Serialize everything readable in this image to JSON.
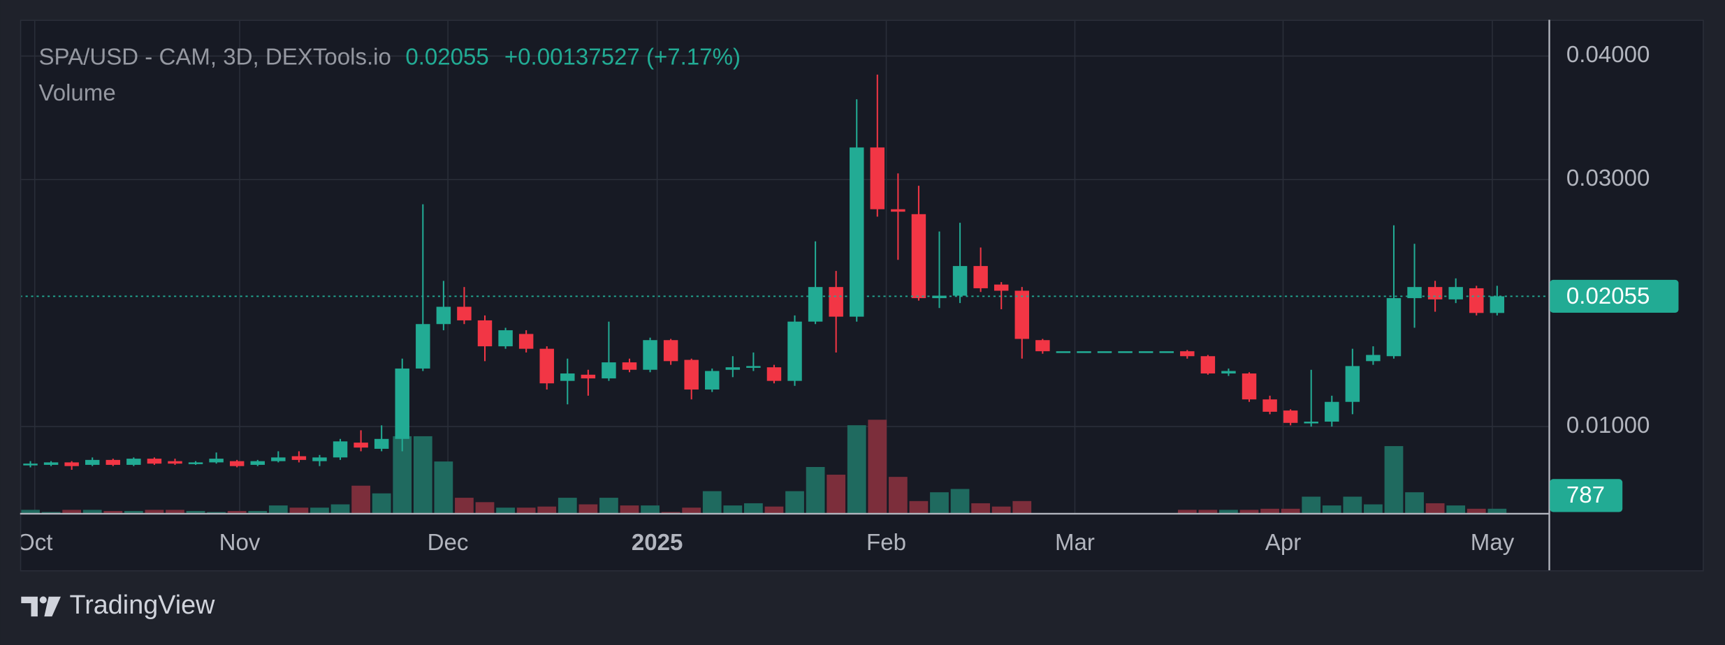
{
  "chart_data": {
    "type": "candlestick",
    "symbol": "SPA/USD - CAM, 3D, DEXTools.io",
    "change": "+0.00137527 (+7.17%)",
    "volume_title": "Volume",
    "brand": "TradingView",
    "up_color": "#22ab94",
    "down_color": "#f23645",
    "volume_up_color": "#1f6a5f",
    "volume_down_color": "#7c2e3b",
    "ylim": [
      0.00299,
      0.04294
    ],
    "yticks": [
      {
        "value": 0.01,
        "label": "0.01000"
      },
      {
        "value": 0.03,
        "label": "0.03000"
      },
      {
        "value": 0.04,
        "label": "0.04000"
      }
    ],
    "y2lim": [
      0,
      88000
    ],
    "xlim": [
      -0.5,
      73.5
    ],
    "xticks": [
      {
        "value": 0.21,
        "label": "Oct"
      },
      {
        "value": 10.13,
        "label": "Nov"
      },
      {
        "value": 20.21,
        "label": "Dec"
      },
      {
        "value": 30.34,
        "label": "2025"
      },
      {
        "value": 41.43,
        "label": "Feb"
      },
      {
        "value": 50.56,
        "label": "Mar"
      },
      {
        "value": 60.64,
        "label": "Apr"
      },
      {
        "value": 70.77,
        "label": "May"
      }
    ],
    "grid": true,
    "open": [
      0.0069,
      0.0069,
      0.0071,
      0.0069,
      0.0073,
      0.0069,
      0.0074,
      0.0072,
      0.007,
      0.0071,
      0.0072,
      0.0069,
      0.0072,
      0.0076,
      0.0072,
      0.0075,
      0.0087,
      0.0082,
      0.009,
      0.0147,
      0.0183,
      0.0197,
      0.0186,
      0.0165,
      0.0175,
      0.0163,
      0.0137,
      0.0142,
      0.0139,
      0.0152,
      0.0146,
      0.017,
      0.0154,
      0.013,
      0.0146,
      0.0148,
      0.0148,
      0.0137,
      0.0185,
      0.0213,
      0.0189,
      0.0326,
      0.0276,
      0.0272,
      0.0204,
      0.0206,
      0.023,
      0.0215,
      0.021,
      0.017,
      0.0161,
      0.0161,
      0.0161,
      0.0161,
      0.0161,
      0.0161,
      0.0161,
      0.0157,
      0.0143,
      0.0143,
      0.0122,
      0.0113,
      0.0103,
      0.0104,
      0.012,
      0.0153,
      0.0157,
      0.0204,
      0.0213,
      0.0203,
      0.0212,
      0.0192
    ],
    "high": [
      0.0072,
      0.0072,
      0.0072,
      0.0075,
      0.0074,
      0.0075,
      0.0075,
      0.0074,
      0.0072,
      0.0079,
      0.0073,
      0.0073,
      0.008,
      0.008,
      0.0077,
      0.009,
      0.0097,
      0.0101,
      0.0155,
      0.028,
      0.0218,
      0.0213,
      0.019,
      0.018,
      0.0178,
      0.0165,
      0.0155,
      0.0146,
      0.0185,
      0.0155,
      0.0172,
      0.0171,
      0.0155,
      0.0147,
      0.0157,
      0.016,
      0.015,
      0.019,
      0.025,
      0.0226,
      0.0365,
      0.0385,
      0.0305,
      0.0295,
      0.0258,
      0.0265,
      0.0245,
      0.0217,
      0.0213,
      0.0171,
      0.0161,
      0.0161,
      0.0161,
      0.0161,
      0.0161,
      0.0161,
      0.0162,
      0.0158,
      0.0147,
      0.0144,
      0.0125,
      0.0114,
      0.0146,
      0.0125,
      0.0163,
      0.0165,
      0.0263,
      0.0248,
      0.0218,
      0.022,
      0.0214,
      0.0214
    ],
    "low": [
      0.0067,
      0.0068,
      0.0065,
      0.0068,
      0.0068,
      0.0068,
      0.0069,
      0.0069,
      0.0069,
      0.007,
      0.0067,
      0.0068,
      0.0071,
      0.0071,
      0.0068,
      0.0073,
      0.008,
      0.008,
      0.008,
      0.0145,
      0.0178,
      0.0183,
      0.0153,
      0.0163,
      0.016,
      0.013,
      0.0118,
      0.0125,
      0.0137,
      0.0144,
      0.0144,
      0.015,
      0.0122,
      0.0128,
      0.014,
      0.0145,
      0.0135,
      0.0133,
      0.0183,
      0.016,
      0.0185,
      0.027,
      0.0235,
      0.0202,
      0.0196,
      0.02,
      0.0209,
      0.0195,
      0.0155,
      0.0159,
      0.0161,
      0.0161,
      0.0161,
      0.0161,
      0.0161,
      0.0161,
      0.0155,
      0.0142,
      0.0141,
      0.012,
      0.011,
      0.0101,
      0.01,
      0.01,
      0.011,
      0.015,
      0.0155,
      0.018,
      0.0193,
      0.02,
      0.019,
      0.019
    ],
    "close": [
      0.007,
      0.0071,
      0.0068,
      0.0073,
      0.0069,
      0.0074,
      0.007,
      0.007,
      0.0071,
      0.0074,
      0.0068,
      0.0072,
      0.0075,
      0.0073,
      0.0075,
      0.0088,
      0.0083,
      0.009,
      0.0147,
      0.0183,
      0.0197,
      0.0186,
      0.0165,
      0.0178,
      0.0163,
      0.0135,
      0.0143,
      0.0139,
      0.0152,
      0.0146,
      0.017,
      0.0153,
      0.013,
      0.0145,
      0.0148,
      0.0149,
      0.0137,
      0.0185,
      0.0213,
      0.0189,
      0.0326,
      0.0276,
      0.0274,
      0.0204,
      0.0206,
      0.023,
      0.0212,
      0.021,
      0.0171,
      0.0161,
      0.0161,
      0.0161,
      0.0161,
      0.0161,
      0.0161,
      0.0161,
      0.0157,
      0.0143,
      0.0145,
      0.0122,
      0.0112,
      0.0103,
      0.0104,
      0.012,
      0.0149,
      0.0158,
      0.0204,
      0.0213,
      0.0203,
      0.0213,
      0.0192,
      0.02055
    ],
    "volume": [
      588,
      196,
      588,
      588,
      392,
      392,
      588,
      588,
      392,
      196,
      392,
      392,
      1372,
      980,
      980,
      1568,
      4900,
      3528,
      13720,
      13720,
      9212,
      2744,
      1960,
      980,
      980,
      1176,
      2744,
      1568,
      2744,
      1372,
      1372,
      196,
      980,
      3920,
      1372,
      1764,
      1176,
      3920,
      8232,
      6860,
      15680,
      16660,
      6468,
      2156,
      3724,
      4312,
      1764,
      1176,
      2156,
      0,
      0,
      0,
      0,
      0,
      0,
      0,
      588,
      588,
      588,
      588,
      784,
      784,
      2940,
      1372,
      2940,
      1568,
      11956,
      3724,
      1764,
      1372,
      784,
      787
    ]
  }
}
